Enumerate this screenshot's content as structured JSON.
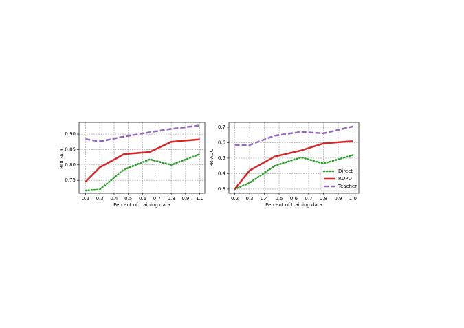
{
  "chart_data": [
    {
      "type": "line",
      "xlabel": "Percent of training data",
      "ylabel": "ROC-AUC",
      "x": [
        0.2,
        0.3,
        0.47,
        0.65,
        0.8,
        1.0
      ],
      "xlim": [
        0.155,
        1.035
      ],
      "xticks": [
        0.2,
        0.3,
        0.4,
        0.5,
        0.6,
        0.7,
        0.8,
        0.9,
        {
          "value": 1.0,
          "label": "1.0"
        }
      ],
      "ylim": [
        0.708,
        0.938
      ],
      "yticks": [
        0.75,
        {
          "value": 0.8,
          "label": "0.80"
        },
        0.85,
        {
          "value": 0.9,
          "label": "0.90"
        }
      ],
      "grid": true,
      "series": [
        {
          "color": "#2ca02c",
          "style": "dotted",
          "values": [
            0.717,
            0.72,
            0.785,
            0.818,
            0.8,
            0.835
          ]
        },
        {
          "color": "#d62728",
          "style": "solid",
          "values": [
            0.745,
            0.792,
            0.835,
            0.842,
            0.875,
            0.883
          ]
        },
        {
          "color": "#9467bd",
          "style": "dashed",
          "values": [
            0.884,
            0.876,
            0.892,
            0.906,
            0.917,
            0.928
          ]
        }
      ]
    },
    {
      "type": "line",
      "xlabel": "Percent of training data",
      "ylabel": "PR-AUC",
      "x": [
        0.2,
        0.3,
        0.47,
        0.65,
        0.8,
        1.0
      ],
      "xlim": [
        0.16,
        1.04
      ],
      "xticks": [
        0.2,
        0.3,
        0.4,
        0.5,
        0.6,
        0.7,
        0.8,
        0.9,
        {
          "value": 1.0,
          "label": "1.0"
        }
      ],
      "ylim": [
        0.273,
        0.731
      ],
      "yticks": [
        0.3,
        0.4,
        0.5,
        0.6,
        0.7
      ],
      "grid": true,
      "legend": "lower right",
      "series": [
        {
          "name": "Direct",
          "color": "#2ca02c",
          "style": "dotted",
          "values": [
            0.3,
            0.34,
            0.45,
            0.505,
            0.465,
            0.52
          ]
        },
        {
          "name": "RDPD",
          "color": "#d62728",
          "style": "solid",
          "values": [
            0.3,
            0.42,
            0.51,
            0.55,
            0.595,
            0.61
          ]
        },
        {
          "name": "Teacher",
          "color": "#9467bd",
          "style": "dashed",
          "values": [
            0.585,
            0.585,
            0.645,
            0.67,
            0.66,
            0.705
          ]
        }
      ]
    }
  ]
}
